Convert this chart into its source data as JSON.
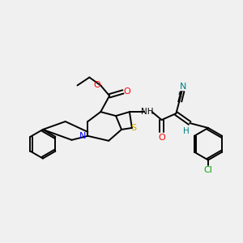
{
  "bg_color": "#f0f0f0",
  "bond_color": "#000000",
  "atom_colors": {
    "O": "#ff0000",
    "N": "#0000ff",
    "S": "#ccaa00",
    "Cl": "#00aa00",
    "C_label": "#333333",
    "H": "#008080",
    "N_cyan": "#008080"
  },
  "figsize": [
    3.0,
    3.0
  ],
  "dpi": 100
}
